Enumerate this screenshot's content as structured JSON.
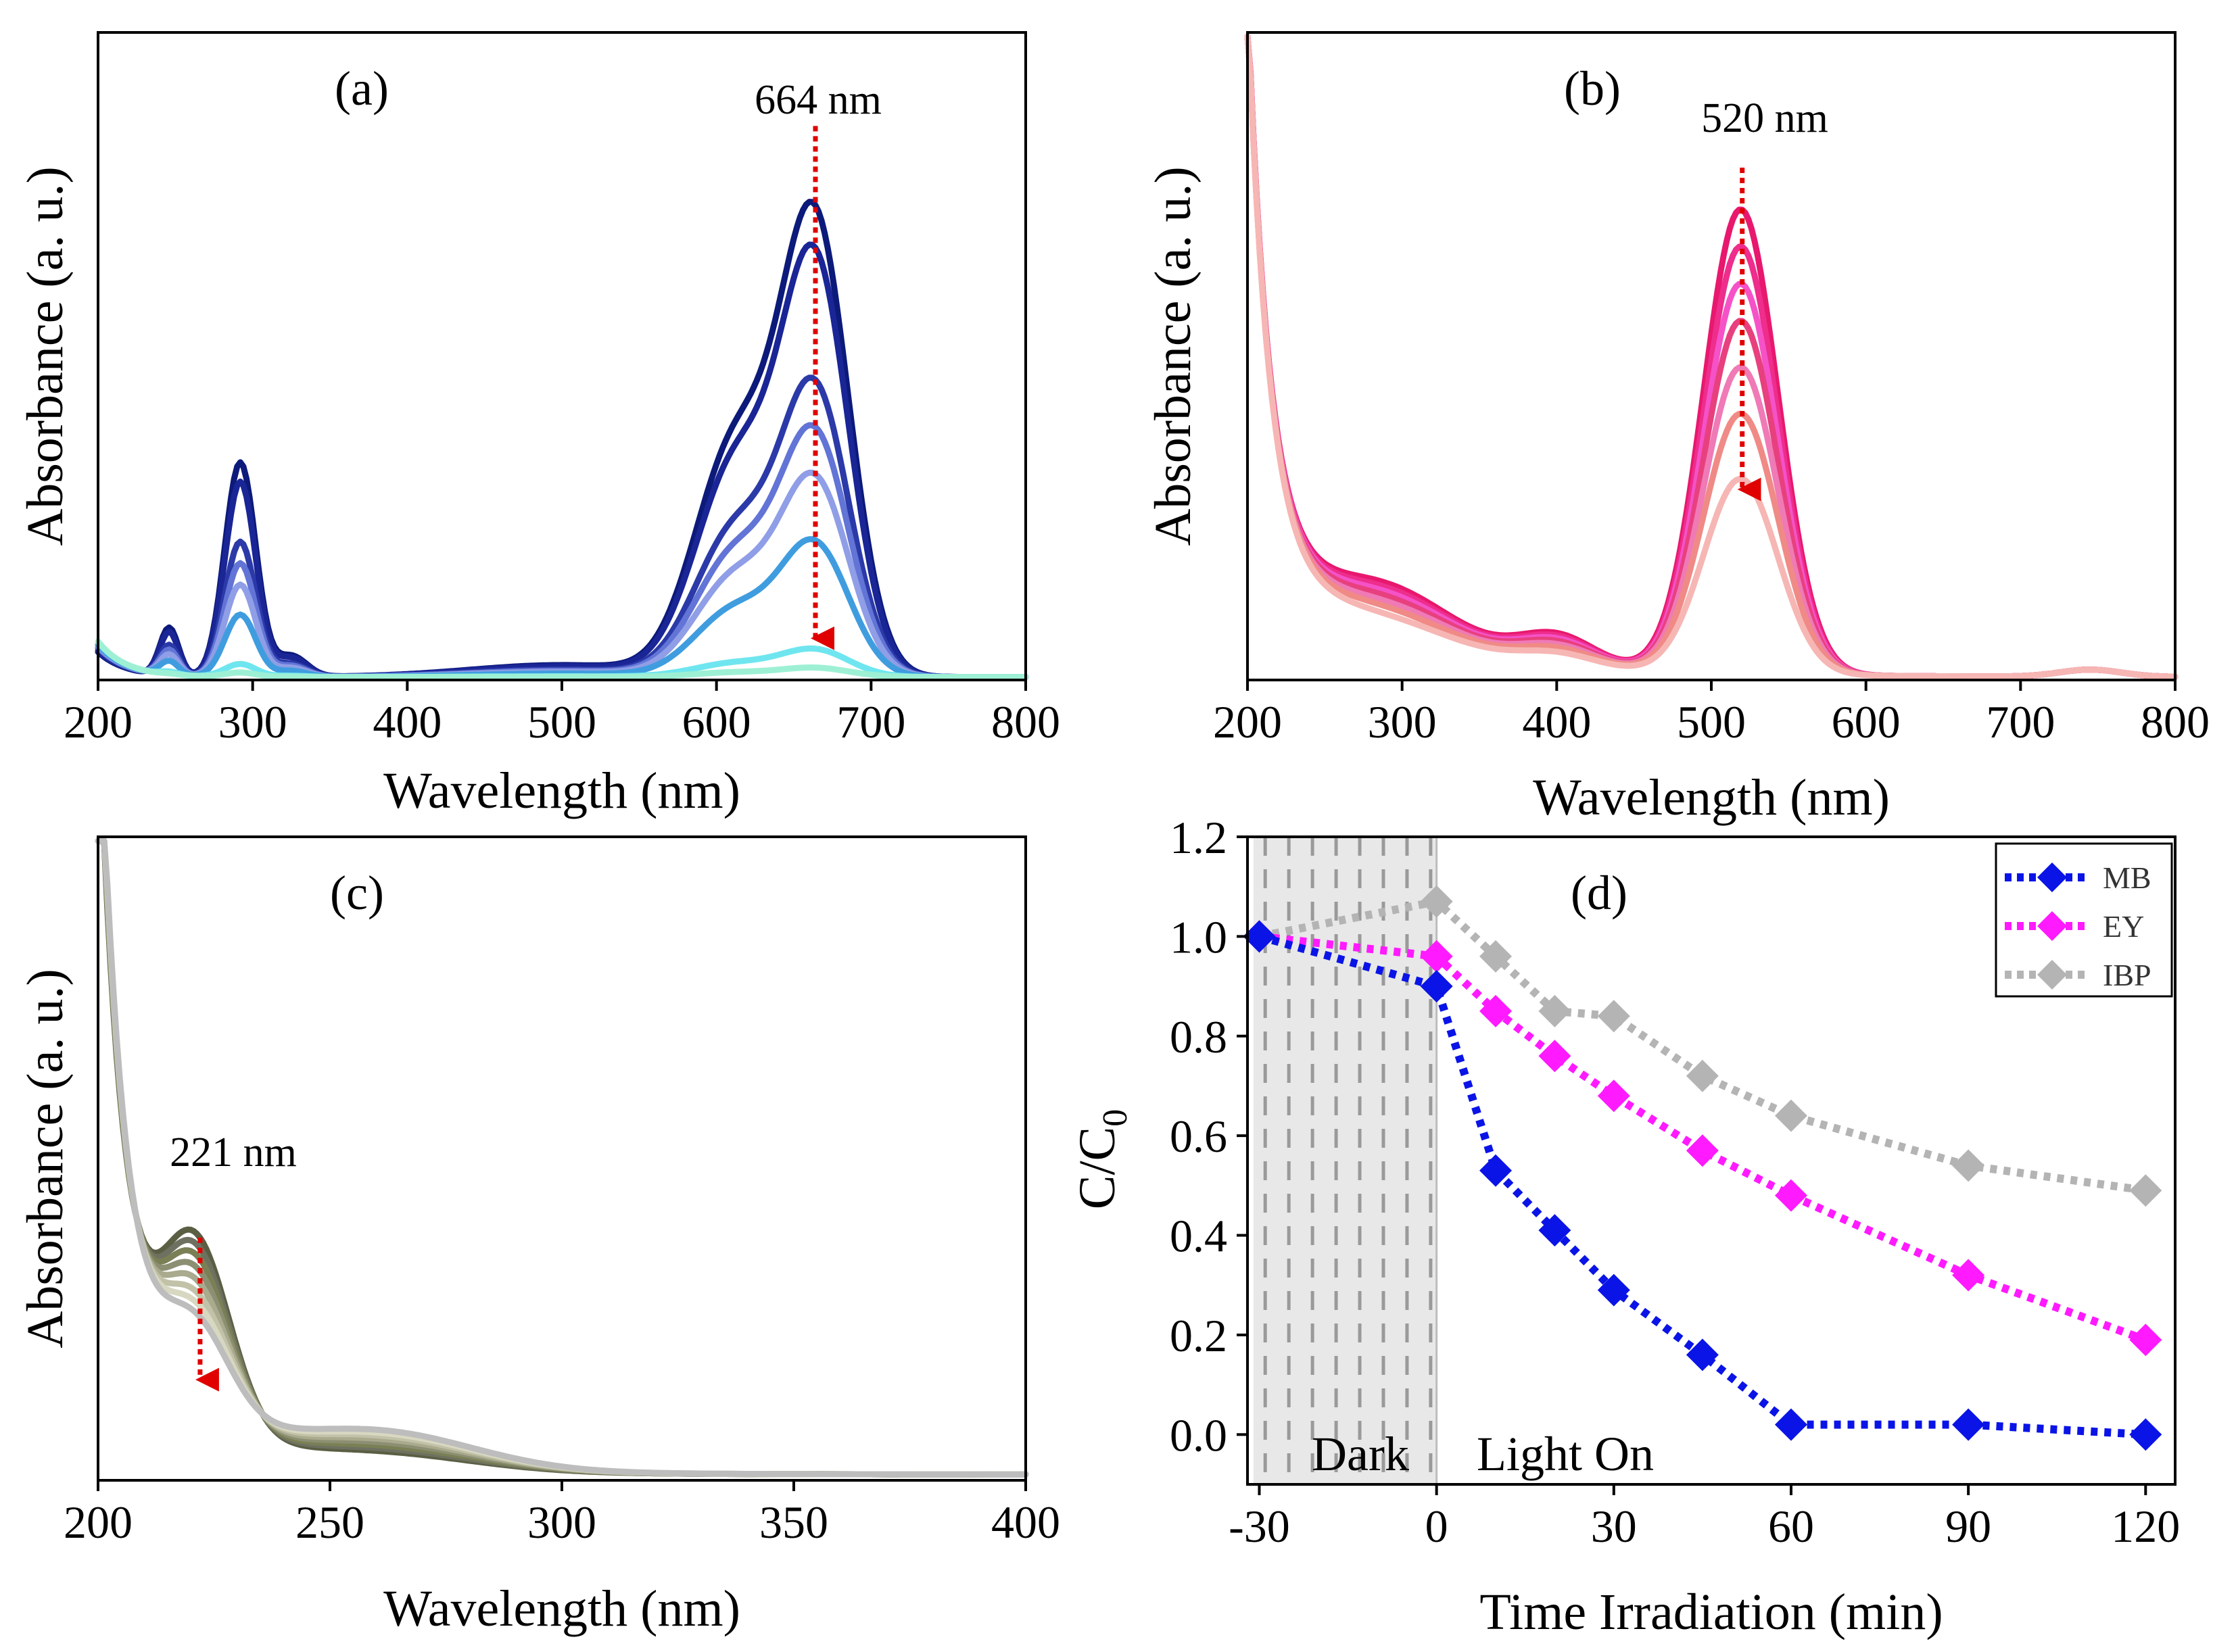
{
  "chart_data": [
    {
      "id": "a",
      "type": "line",
      "panel_label": "(a)",
      "annotation": "664 nm",
      "annotation_x": 664,
      "xlabel": "Wavelength (nm)",
      "ylabel": "Absorbance (a. u.)",
      "xlim": [
        200,
        800
      ],
      "ylim": [
        0,
        1.0
      ],
      "xticks": [
        200,
        300,
        400,
        500,
        600,
        700,
        800
      ],
      "arrow": {
        "x": 664,
        "from": 0.93,
        "to": 0.07
      },
      "series": [
        {
          "name": "s1",
          "color": "#0c1a7a",
          "scale": 1.0
        },
        {
          "name": "s2",
          "color": "#1a2596",
          "scale": 0.91
        },
        {
          "name": "s3",
          "color": "#2b3aa8",
          "scale": 0.63
        },
        {
          "name": "s4",
          "color": "#6274d6",
          "scale": 0.53
        },
        {
          "name": "s5",
          "color": "#8f9ee6",
          "scale": 0.43
        },
        {
          "name": "s6",
          "color": "#3f9ddf",
          "scale": 0.29
        },
        {
          "name": "s7",
          "color": "#6fe6ef",
          "scale": 0.06
        },
        {
          "name": "s8",
          "color": "#9ef0d4",
          "scale": 0.02
        }
      ]
    },
    {
      "id": "b",
      "type": "line",
      "panel_label": "(b)",
      "annotation": "520 nm",
      "annotation_x": 520,
      "xlabel": "Wavelength (nm)",
      "ylabel": "Absorbance (a. u.)",
      "xlim": [
        200,
        800
      ],
      "ylim": [
        0,
        1.0
      ],
      "xticks": [
        200,
        300,
        400,
        500,
        600,
        700,
        800
      ],
      "arrow": {
        "x": 520,
        "from": 0.86,
        "to": 0.32
      },
      "series": [
        {
          "name": "s1",
          "color": "#e8186e",
          "scale": 1.0
        },
        {
          "name": "s2",
          "color": "#ee2d8c",
          "scale": 0.92
        },
        {
          "name": "s3",
          "color": "#f552c8",
          "scale": 0.84
        },
        {
          "name": "s4",
          "color": "#e8407e",
          "scale": 0.76
        },
        {
          "name": "s5",
          "color": "#ef7ab6",
          "scale": 0.66
        },
        {
          "name": "s6",
          "color": "#f08a86",
          "scale": 0.56
        },
        {
          "name": "s7",
          "color": "#f6b6b4",
          "scale": 0.42
        }
      ]
    },
    {
      "id": "c",
      "type": "line",
      "panel_label": "(c)",
      "annotation": "221 nm",
      "annotation_x": 221,
      "xlabel": "Wavelength (nm)",
      "ylabel": "Absorbance (a. u.)",
      "xlim": [
        200,
        400
      ],
      "ylim": [
        0,
        1.0
      ],
      "xticks": [
        200,
        250,
        300,
        350,
        400
      ],
      "arrow": {
        "x": 222,
        "from": 0.41,
        "to": 0.17
      },
      "series": [
        {
          "name": "s1",
          "color": "#5a5f44",
          "scale": 1.0
        },
        {
          "name": "s2",
          "color": "#6e7160",
          "scale": 0.93
        },
        {
          "name": "s3",
          "color": "#7a7f55",
          "scale": 0.86
        },
        {
          "name": "s4",
          "color": "#8c8f72",
          "scale": 0.78
        },
        {
          "name": "s5",
          "color": "#a9aa8e",
          "scale": 0.7
        },
        {
          "name": "s6",
          "color": "#c2c2a8",
          "scale": 0.62
        },
        {
          "name": "s7",
          "color": "#d8d8c2",
          "scale": 0.55
        },
        {
          "name": "s8",
          "color": "#bdbdbd",
          "scale": 0.48
        }
      ]
    },
    {
      "id": "d",
      "type": "line",
      "panel_label": "(d)",
      "xlabel": "Time Irradiation (min)",
      "ylabel": "C/C",
      "ylabel_sub": "0",
      "xlim": [
        -32,
        125
      ],
      "ylim": [
        -0.1,
        1.2
      ],
      "xticks": [
        -30,
        0,
        30,
        60,
        90,
        120
      ],
      "xtick_labels": [
        "-30",
        "0",
        "30",
        "60",
        "90",
        "120"
      ],
      "yticks": [
        0.0,
        0.2,
        0.4,
        0.6,
        0.8,
        1.0,
        1.2
      ],
      "ytick_labels": [
        "0.0",
        "0.2",
        "0.4",
        "0.6",
        "0.8",
        "1.0",
        "1.2"
      ],
      "dark_region": [
        -31,
        0
      ],
      "dark_label": "Dark",
      "light_label": "Light On",
      "legend": [
        "MB",
        "EY",
        "IBP"
      ],
      "series": [
        {
          "name": "MB",
          "color": "#0a14e6",
          "x": [
            -30,
            0,
            10,
            20,
            30,
            45,
            60,
            90,
            120
          ],
          "y": [
            1.0,
            0.9,
            0.53,
            0.41,
            0.29,
            0.16,
            0.02,
            0.02,
            0.0
          ]
        },
        {
          "name": "EY",
          "color": "#ff1aff",
          "x": [
            -30,
            0,
            10,
            20,
            30,
            45,
            60,
            90,
            120
          ],
          "y": [
            1.0,
            0.96,
            0.85,
            0.76,
            0.68,
            0.57,
            0.48,
            0.32,
            0.19
          ]
        },
        {
          "name": "IBP",
          "color": "#b4b4b4",
          "x": [
            -30,
            0,
            10,
            20,
            30,
            45,
            60,
            90,
            120
          ],
          "y": [
            1.0,
            1.07,
            0.96,
            0.85,
            0.84,
            0.72,
            0.64,
            0.54,
            0.49
          ]
        }
      ]
    }
  ]
}
